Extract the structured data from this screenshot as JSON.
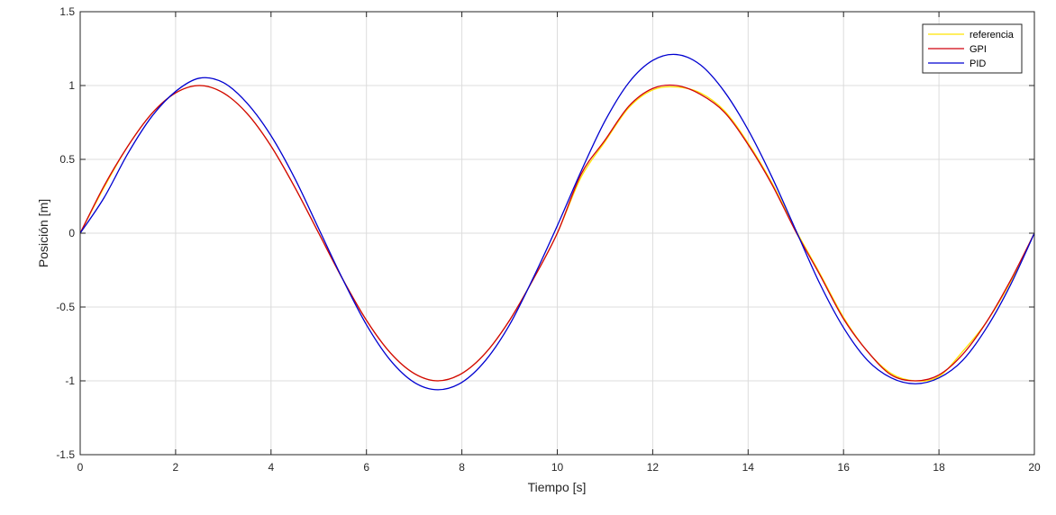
{
  "chart_data": {
    "type": "line",
    "xlabel": "Tiempo [s]",
    "ylabel": "Posición [m]",
    "xlim": [
      0,
      20
    ],
    "ylim": [
      -1.5,
      1.5
    ],
    "xticks": [
      0,
      2,
      4,
      6,
      8,
      10,
      12,
      14,
      16,
      18,
      20
    ],
    "yticks": [
      -1.5,
      -1,
      -0.5,
      0,
      0.5,
      1,
      1.5
    ],
    "xtick_labels": [
      "0",
      "2",
      "4",
      "6",
      "8",
      "10",
      "12",
      "14",
      "16",
      "18",
      "20"
    ],
    "ytick_labels": [
      "-1.5",
      "-1",
      "-0.5",
      "0",
      "0.5",
      "1",
      "1.5"
    ],
    "grid": true,
    "legend_position": "top-right",
    "series": [
      {
        "name": "referencia",
        "color": "#FFE400",
        "x": [
          0,
          0.5,
          1,
          1.5,
          2,
          2.5,
          3,
          3.5,
          4,
          4.5,
          5,
          5.5,
          6,
          6.5,
          7,
          7.5,
          8,
          8.5,
          9,
          9.5,
          10,
          10.5,
          11,
          11.5,
          12,
          12.5,
          13,
          13.5,
          14,
          14.5,
          15,
          15.5,
          16,
          16.5,
          17,
          17.5,
          18,
          18.5,
          19,
          19.5,
          20
        ],
        "y": [
          0,
          0.31,
          0.59,
          0.81,
          0.95,
          1.0,
          0.95,
          0.81,
          0.59,
          0.31,
          0,
          -0.31,
          -0.59,
          -0.81,
          -0.95,
          -1.0,
          -0.95,
          -0.81,
          -0.59,
          -0.31,
          0,
          0.38,
          0.62,
          0.85,
          0.97,
          0.99,
          0.95,
          0.83,
          0.61,
          0.34,
          0.02,
          -0.27,
          -0.57,
          -0.8,
          -0.95,
          -1.0,
          -0.97,
          -0.8,
          -0.6,
          -0.33,
          0
        ]
      },
      {
        "name": "GPI",
        "color": "#D0000D",
        "x": [
          0,
          0.5,
          1,
          1.5,
          2,
          2.5,
          3,
          3.5,
          4,
          4.5,
          5,
          5.5,
          6,
          6.5,
          7,
          7.5,
          8,
          8.5,
          9,
          9.5,
          10,
          10.5,
          11,
          11.5,
          12,
          12.5,
          13,
          13.5,
          14,
          14.5,
          15,
          15.5,
          16,
          16.5,
          17,
          17.5,
          18,
          18.5,
          19,
          19.5,
          20
        ],
        "y": [
          0,
          0.32,
          0.59,
          0.81,
          0.95,
          1.0,
          0.95,
          0.81,
          0.59,
          0.31,
          0,
          -0.31,
          -0.59,
          -0.81,
          -0.95,
          -1.0,
          -0.95,
          -0.81,
          -0.59,
          -0.31,
          0,
          0.4,
          0.63,
          0.86,
          0.98,
          1.0,
          0.94,
          0.82,
          0.6,
          0.33,
          0.01,
          -0.28,
          -0.58,
          -0.8,
          -0.96,
          -1.0,
          -0.96,
          -0.82,
          -0.6,
          -0.32,
          0
        ]
      },
      {
        "name": "PID",
        "color": "#0000D0",
        "x": [
          0,
          0.5,
          1,
          1.5,
          2,
          2.5,
          3,
          3.5,
          4,
          4.5,
          5,
          5.5,
          6,
          6.5,
          7,
          7.5,
          8,
          8.5,
          9,
          9.5,
          10,
          10.5,
          11,
          11.5,
          12,
          12.5,
          13,
          13.5,
          14,
          14.5,
          15,
          15.5,
          16,
          16.5,
          17,
          17.5,
          18,
          18.5,
          19,
          19.5,
          20
        ],
        "y": [
          0,
          0.24,
          0.54,
          0.79,
          0.96,
          1.05,
          1.02,
          0.88,
          0.66,
          0.37,
          0.03,
          -0.31,
          -0.62,
          -0.86,
          -1.01,
          -1.06,
          -1.01,
          -0.86,
          -0.62,
          -0.3,
          0.05,
          0.42,
          0.76,
          1.02,
          1.17,
          1.21,
          1.14,
          0.96,
          0.7,
          0.38,
          0.02,
          -0.34,
          -0.64,
          -0.86,
          -0.98,
          -1.02,
          -0.98,
          -0.86,
          -0.64,
          -0.35,
          0
        ]
      }
    ]
  }
}
